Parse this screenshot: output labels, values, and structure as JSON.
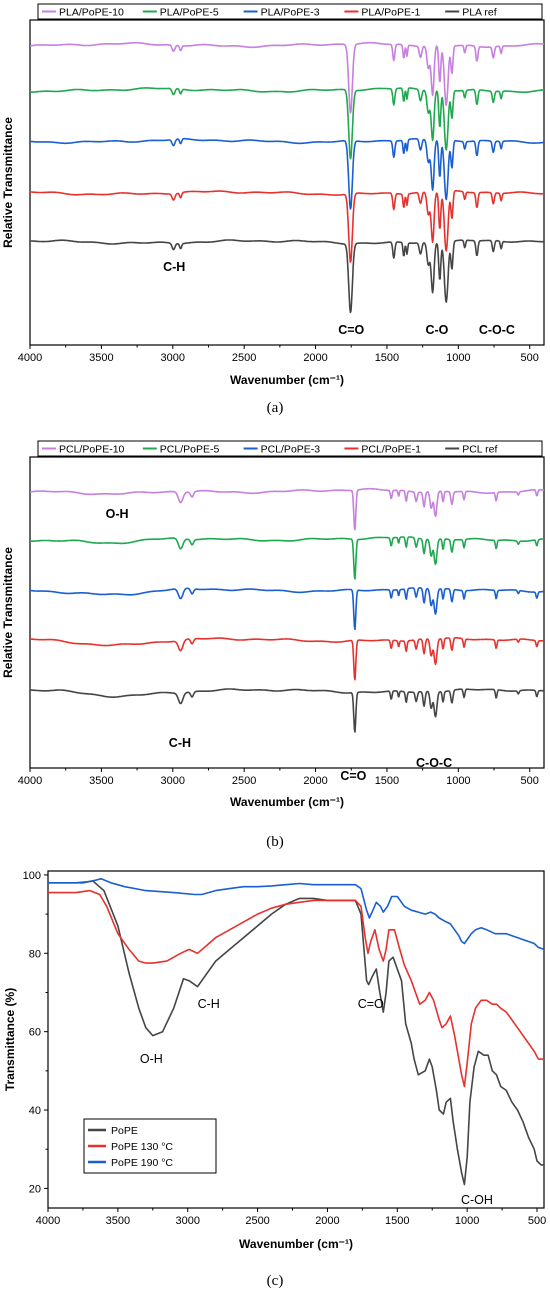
{
  "chart_data": [
    {
      "type": "line",
      "panel": "a",
      "caption": "(a)",
      "xlabel": "Wavenumber (cm⁻¹)",
      "ylabel": "Relative Transmittance",
      "xlim": [
        4000,
        400
      ],
      "x_ticks": [
        "4000",
        "3500",
        "3000",
        "2500",
        "2000",
        "1500",
        "1000",
        "500"
      ],
      "y_ticks": [],
      "legend_position": "top, outside",
      "series": [
        {
          "name": "PLA/PoPE-10",
          "color": "#c77fe0"
        },
        {
          "name": "PLA/PoPE-5",
          "color": "#1fa84f"
        },
        {
          "name": "PLA/PoPE-3",
          "color": "#1a5fd1"
        },
        {
          "name": "PLA/PoPE-1",
          "color": "#e5322e"
        },
        {
          "name": "PLA ref",
          "color": "#454545"
        }
      ],
      "annotations": [
        {
          "text": "C-H",
          "x": 2990
        },
        {
          "text": "C=O",
          "x": 1750
        },
        {
          "text": "C-O",
          "x": 1150
        },
        {
          "text": "C-O-C",
          "x": 940
        }
      ]
    },
    {
      "type": "line",
      "panel": "b",
      "caption": "(b)",
      "xlabel": "Wavenumber (cm⁻¹)",
      "ylabel": "Relative Transmittance",
      "xlim": [
        4000,
        400
      ],
      "x_ticks": [
        "4000",
        "3500",
        "3000",
        "2500",
        "2000",
        "1500",
        "1000",
        "500"
      ],
      "y_ticks": [],
      "legend_position": "top, outside",
      "series": [
        {
          "name": "PCL/PoPE-10",
          "color": "#c77fe0"
        },
        {
          "name": "PCL/PoPE-5",
          "color": "#1fa84f"
        },
        {
          "name": "PCL/PoPE-3",
          "color": "#1a5fd1"
        },
        {
          "name": "PCL/PoPE-1",
          "color": "#e5322e"
        },
        {
          "name": "PCL ref",
          "color": "#454545"
        }
      ],
      "annotations": [
        {
          "text": "O-H",
          "x": 3390
        },
        {
          "text": "C-H",
          "x": 2950
        },
        {
          "text": "C=O",
          "x": 1735
        },
        {
          "text": "C-O-C",
          "x": 1170
        }
      ]
    },
    {
      "type": "line",
      "panel": "c",
      "caption": "(c)",
      "xlabel": "Wavenumber (cm⁻¹)",
      "ylabel": "Transmittance (%)",
      "xlim": [
        4000,
        450
      ],
      "ylim": [
        15,
        101
      ],
      "x_ticks": [
        "4000",
        "3500",
        "3000",
        "2500",
        "2000",
        "1500",
        "1000",
        "500"
      ],
      "y_ticks": [
        "20",
        "40",
        "60",
        "80",
        "100"
      ],
      "legend_position": "bottom-left",
      "series": [
        {
          "name": "PoPE",
          "color": "#454545",
          "points": [
            [
              4000,
              98
            ],
            [
              3750,
              98
            ],
            [
              3680,
              98.5
            ],
            [
              3600,
              96
            ],
            [
              3500,
              87
            ],
            [
              3420,
              75
            ],
            [
              3350,
              66
            ],
            [
              3300,
              61
            ],
            [
              3250,
              59
            ],
            [
              3180,
              60
            ],
            [
              3100,
              66
            ],
            [
              3030,
              73.5
            ],
            [
              2990,
              73
            ],
            [
              2930,
              71.5
            ],
            [
              2880,
              74
            ],
            [
              2800,
              78
            ],
            [
              2700,
              81
            ],
            [
              2600,
              84
            ],
            [
              2500,
              87
            ],
            [
              2400,
              90
            ],
            [
              2300,
              92.5
            ],
            [
              2200,
              94
            ],
            [
              2100,
              94
            ],
            [
              2000,
              93.5
            ],
            [
              1900,
              93.5
            ],
            [
              1800,
              93.5
            ],
            [
              1760,
              90
            ],
            [
              1720,
              73
            ],
            [
              1705,
              72
            ],
            [
              1680,
              74
            ],
            [
              1650,
              76
            ],
            [
              1625,
              70
            ],
            [
              1600,
              65
            ],
            [
              1580,
              70
            ],
            [
              1560,
              78
            ],
            [
              1530,
              79
            ],
            [
              1500,
              76
            ],
            [
              1470,
              73
            ],
            [
              1440,
              62
            ],
            [
              1400,
              57
            ],
            [
              1380,
              53
            ],
            [
              1350,
              49
            ],
            [
              1300,
              50
            ],
            [
              1270,
              53
            ],
            [
              1250,
              51
            ],
            [
              1220,
              45
            ],
            [
              1200,
              40
            ],
            [
              1170,
              39
            ],
            [
              1150,
              42
            ],
            [
              1120,
              43
            ],
            [
              1100,
              37
            ],
            [
              1070,
              30
            ],
            [
              1040,
              24
            ],
            [
              1020,
              21
            ],
            [
              1000,
              28
            ],
            [
              980,
              42
            ],
            [
              950,
              51
            ],
            [
              920,
              55
            ],
            [
              880,
              54
            ],
            [
              850,
              54
            ],
            [
              820,
              50
            ],
            [
              790,
              49
            ],
            [
              760,
              46
            ],
            [
              720,
              45
            ],
            [
              680,
              42
            ],
            [
              640,
              40
            ],
            [
              600,
              37
            ],
            [
              560,
              33
            ],
            [
              520,
              30
            ],
            [
              500,
              27
            ],
            [
              470,
              26
            ],
            [
              450,
              26
            ]
          ]
        },
        {
          "name": "PoPE 130 °C",
          "color": "#e5322e",
          "points": [
            [
              4000,
              95.5
            ],
            [
              3800,
              95.5
            ],
            [
              3700,
              96
            ],
            [
              3630,
              95
            ],
            [
              3580,
              92
            ],
            [
              3500,
              85
            ],
            [
              3420,
              81
            ],
            [
              3350,
              78
            ],
            [
              3300,
              77.5
            ],
            [
              3250,
              77.5
            ],
            [
              3150,
              78
            ],
            [
              3050,
              80
            ],
            [
              2990,
              81
            ],
            [
              2930,
              80
            ],
            [
              2880,
              81.5
            ],
            [
              2800,
              84
            ],
            [
              2700,
              86
            ],
            [
              2600,
              88
            ],
            [
              2500,
              90
            ],
            [
              2400,
              91.5
            ],
            [
              2300,
              92.5
            ],
            [
              2200,
              93
            ],
            [
              2100,
              93.5
            ],
            [
              2000,
              93.5
            ],
            [
              1900,
              93.5
            ],
            [
              1800,
              93.5
            ],
            [
              1760,
              92
            ],
            [
              1730,
              84
            ],
            [
              1710,
              80
            ],
            [
              1690,
              83
            ],
            [
              1660,
              86
            ],
            [
              1630,
              81
            ],
            [
              1600,
              78
            ],
            [
              1580,
              81
            ],
            [
              1560,
              86
            ],
            [
              1520,
              86
            ],
            [
              1490,
              82
            ],
            [
              1450,
              77
            ],
            [
              1400,
              73
            ],
            [
              1370,
              70
            ],
            [
              1340,
              67
            ],
            [
              1300,
              68
            ],
            [
              1270,
              70
            ],
            [
              1240,
              68
            ],
            [
              1200,
              63
            ],
            [
              1180,
              61
            ],
            [
              1150,
              62
            ],
            [
              1120,
              64
            ],
            [
              1090,
              59
            ],
            [
              1060,
              53
            ],
            [
              1040,
              49
            ],
            [
              1020,
              46
            ],
            [
              1000,
              52
            ],
            [
              970,
              62
            ],
            [
              940,
              66
            ],
            [
              900,
              68
            ],
            [
              860,
              68
            ],
            [
              820,
              67
            ],
            [
              790,
              67
            ],
            [
              760,
              66
            ],
            [
              720,
              65
            ],
            [
              680,
              63
            ],
            [
              640,
              61
            ],
            [
              600,
              59
            ],
            [
              560,
              57
            ],
            [
              520,
              55
            ],
            [
              490,
              53
            ],
            [
              450,
              53
            ]
          ]
        },
        {
          "name": "PoPE 190 °C",
          "color": "#1a5fd1",
          "points": [
            [
              4000,
              98
            ],
            [
              3800,
              98
            ],
            [
              3700,
              98.3
            ],
            [
              3620,
              99
            ],
            [
              3550,
              98
            ],
            [
              3450,
              97
            ],
            [
              3300,
              96
            ],
            [
              3100,
              95.5
            ],
            [
              2950,
              95
            ],
            [
              2900,
              95
            ],
            [
              2800,
              96
            ],
            [
              2700,
              96.5
            ],
            [
              2600,
              97
            ],
            [
              2500,
              97
            ],
            [
              2400,
              97.2
            ],
            [
              2300,
              97.5
            ],
            [
              2200,
              97.8
            ],
            [
              2100,
              97.5
            ],
            [
              2000,
              97.5
            ],
            [
              1900,
              97.5
            ],
            [
              1800,
              97.5
            ],
            [
              1760,
              96.5
            ],
            [
              1720,
              91
            ],
            [
              1700,
              89
            ],
            [
              1680,
              90.5
            ],
            [
              1650,
              93
            ],
            [
              1620,
              92
            ],
            [
              1600,
              90.5
            ],
            [
              1570,
              92
            ],
            [
              1540,
              94.5
            ],
            [
              1500,
              94.5
            ],
            [
              1480,
              93.5
            ],
            [
              1450,
              92
            ],
            [
              1400,
              91
            ],
            [
              1350,
              90.5
            ],
            [
              1300,
              90
            ],
            [
              1260,
              90.5
            ],
            [
              1230,
              90
            ],
            [
              1200,
              89
            ],
            [
              1150,
              88
            ],
            [
              1120,
              87.5
            ],
            [
              1090,
              86
            ],
            [
              1060,
              84.5
            ],
            [
              1040,
              83
            ],
            [
              1020,
              82.5
            ],
            [
              1000,
              83.5
            ],
            [
              970,
              85
            ],
            [
              940,
              86
            ],
            [
              900,
              86.5
            ],
            [
              860,
              86
            ],
            [
              830,
              85.5
            ],
            [
              800,
              85
            ],
            [
              760,
              85
            ],
            [
              720,
              85
            ],
            [
              680,
              84.5
            ],
            [
              640,
              84
            ],
            [
              600,
              83.5
            ],
            [
              560,
              83
            ],
            [
              520,
              82.5
            ],
            [
              490,
              81.5
            ],
            [
              450,
              81
            ]
          ]
        }
      ],
      "annotations": [
        {
          "text": "O-H",
          "x": 3260,
          "y": 52
        },
        {
          "text": "C-H",
          "x": 2850,
          "y": 66
        },
        {
          "text": "C=O",
          "x": 1690,
          "y": 66
        },
        {
          "text": "C-OH",
          "x": 930,
          "y": 16
        }
      ]
    }
  ]
}
